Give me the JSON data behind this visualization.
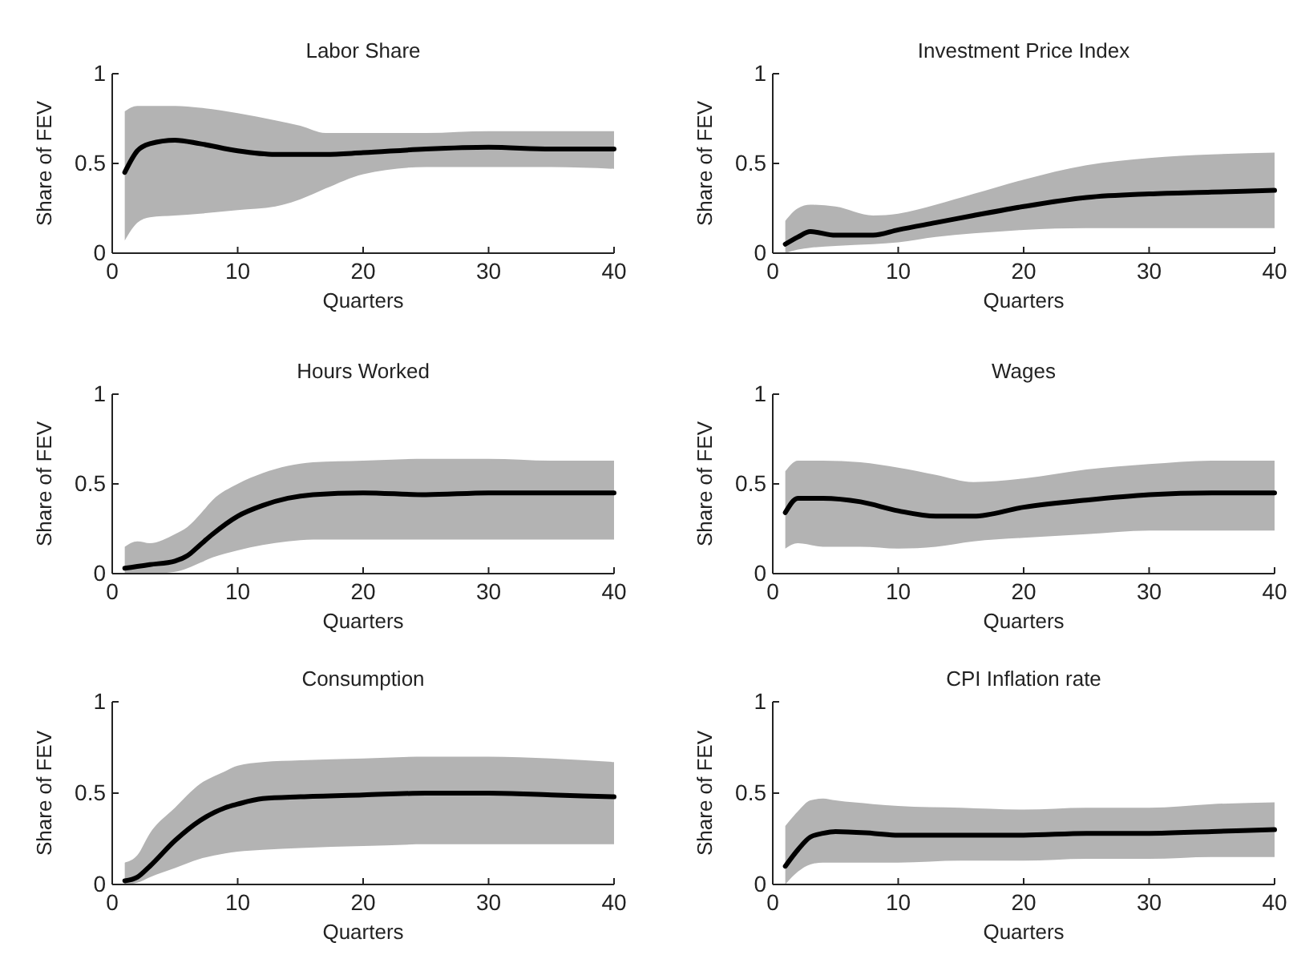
{
  "chart_data": [
    {
      "type": "line",
      "title": "Labor Share",
      "xlabel": "Quarters",
      "ylabel": "Share of FEV",
      "xlim": [
        0,
        40
      ],
      "xticks": [
        0,
        10,
        20,
        30,
        40
      ],
      "ylim": [
        0,
        1
      ],
      "yticks": [
        0,
        0.5,
        1
      ],
      "series": [
        {
          "color": "#000000",
          "x": [
            1,
            2,
            3,
            5,
            7,
            10,
            13,
            15,
            17,
            20,
            25,
            30,
            35,
            40
          ],
          "values": [
            0.45,
            0.57,
            0.61,
            0.63,
            0.61,
            0.57,
            0.55,
            0.55,
            0.55,
            0.56,
            0.58,
            0.59,
            0.58,
            0.58
          ],
          "upper": [
            0.79,
            0.82,
            0.82,
            0.82,
            0.81,
            0.78,
            0.74,
            0.71,
            0.67,
            0.67,
            0.67,
            0.68,
            0.68,
            0.68
          ],
          "lower": [
            0.07,
            0.17,
            0.2,
            0.21,
            0.22,
            0.24,
            0.26,
            0.3,
            0.36,
            0.44,
            0.48,
            0.48,
            0.48,
            0.47
          ]
        }
      ]
    },
    {
      "type": "line",
      "title": "Investment Price Index",
      "xlabel": "Quarters",
      "ylabel": "Share of FEV",
      "xlim": [
        0,
        40
      ],
      "xticks": [
        0,
        10,
        20,
        30,
        40
      ],
      "ylim": [
        0,
        1
      ],
      "yticks": [
        0,
        0.5,
        1
      ],
      "series": [
        {
          "color": "#000000",
          "x": [
            1,
            2,
            3,
            5,
            8,
            10,
            13,
            16,
            20,
            25,
            30,
            35,
            40
          ],
          "values": [
            0.05,
            0.09,
            0.12,
            0.1,
            0.1,
            0.13,
            0.17,
            0.21,
            0.26,
            0.31,
            0.33,
            0.34,
            0.35
          ],
          "upper": [
            0.18,
            0.25,
            0.27,
            0.26,
            0.21,
            0.22,
            0.27,
            0.33,
            0.41,
            0.49,
            0.53,
            0.55,
            0.56
          ],
          "lower": [
            0,
            0.02,
            0.03,
            0.04,
            0.05,
            0.06,
            0.09,
            0.11,
            0.13,
            0.14,
            0.14,
            0.14,
            0.14
          ]
        }
      ]
    },
    {
      "type": "line",
      "title": "Hours Worked",
      "xlabel": "Quarters",
      "ylabel": "Share of FEV",
      "xlim": [
        0,
        40
      ],
      "xticks": [
        0,
        10,
        20,
        30,
        40
      ],
      "ylim": [
        0,
        1
      ],
      "yticks": [
        0,
        0.5,
        1
      ],
      "series": [
        {
          "color": "#000000",
          "x": [
            1,
            2,
            3,
            5,
            6,
            7,
            8,
            10,
            12,
            14,
            16,
            20,
            25,
            30,
            35,
            40
          ],
          "values": [
            0.03,
            0.04,
            0.05,
            0.07,
            0.1,
            0.16,
            0.22,
            0.32,
            0.38,
            0.42,
            0.44,
            0.45,
            0.44,
            0.45,
            0.45,
            0.45
          ],
          "upper": [
            0.15,
            0.18,
            0.17,
            0.22,
            0.26,
            0.33,
            0.41,
            0.5,
            0.56,
            0.6,
            0.62,
            0.63,
            0.64,
            0.64,
            0.63,
            0.63
          ],
          "lower": [
            0,
            0,
            0,
            0.01,
            0.03,
            0.06,
            0.09,
            0.13,
            0.16,
            0.18,
            0.19,
            0.19,
            0.19,
            0.19,
            0.19,
            0.19
          ]
        }
      ]
    },
    {
      "type": "line",
      "title": "Wages",
      "xlabel": "Quarters",
      "ylabel": "Share of FEV",
      "xlim": [
        0,
        40
      ],
      "xticks": [
        0,
        10,
        20,
        30,
        40
      ],
      "ylim": [
        0,
        1
      ],
      "yticks": [
        0,
        0.5,
        1
      ],
      "series": [
        {
          "color": "#000000",
          "x": [
            1,
            2,
            4,
            7,
            10,
            13,
            16,
            20,
            25,
            30,
            35,
            40
          ],
          "values": [
            0.34,
            0.42,
            0.42,
            0.4,
            0.35,
            0.32,
            0.32,
            0.37,
            0.41,
            0.44,
            0.45,
            0.45
          ],
          "upper": [
            0.57,
            0.63,
            0.63,
            0.62,
            0.59,
            0.55,
            0.51,
            0.53,
            0.58,
            0.61,
            0.63,
            0.63
          ],
          "lower": [
            0.14,
            0.17,
            0.15,
            0.15,
            0.14,
            0.15,
            0.18,
            0.2,
            0.22,
            0.24,
            0.24,
            0.24
          ]
        }
      ]
    },
    {
      "type": "line",
      "title": "Consumption",
      "xlabel": "Quarters",
      "ylabel": "Share of FEV",
      "xlim": [
        0,
        40
      ],
      "xticks": [
        0,
        10,
        20,
        30,
        40
      ],
      "ylim": [
        0,
        1
      ],
      "yticks": [
        0,
        0.5,
        1
      ],
      "series": [
        {
          "color": "#000000",
          "x": [
            1,
            2,
            3,
            5,
            7,
            9,
            10,
            12,
            15,
            20,
            25,
            30,
            35,
            40
          ],
          "values": [
            0.02,
            0.04,
            0.1,
            0.24,
            0.35,
            0.42,
            0.44,
            0.47,
            0.48,
            0.49,
            0.5,
            0.5,
            0.49,
            0.48
          ],
          "upper": [
            0.12,
            0.16,
            0.28,
            0.42,
            0.55,
            0.62,
            0.65,
            0.67,
            0.68,
            0.69,
            0.7,
            0.7,
            0.69,
            0.67
          ],
          "lower": [
            0,
            0.01,
            0.04,
            0.09,
            0.14,
            0.17,
            0.18,
            0.19,
            0.2,
            0.21,
            0.22,
            0.22,
            0.22,
            0.22
          ]
        }
      ]
    },
    {
      "type": "line",
      "title": "CPI Inflation rate",
      "xlabel": "Quarters",
      "ylabel": "Share of FEV",
      "xlim": [
        0,
        40
      ],
      "xticks": [
        0,
        10,
        20,
        30,
        40
      ],
      "ylim": [
        0,
        1
      ],
      "yticks": [
        0,
        0.5,
        1
      ],
      "series": [
        {
          "color": "#000000",
          "x": [
            1,
            2,
            3,
            4,
            5,
            8,
            10,
            15,
            20,
            25,
            30,
            35,
            40
          ],
          "values": [
            0.1,
            0.19,
            0.26,
            0.28,
            0.29,
            0.28,
            0.27,
            0.27,
            0.27,
            0.28,
            0.28,
            0.29,
            0.3
          ],
          "upper": [
            0.32,
            0.4,
            0.46,
            0.47,
            0.46,
            0.44,
            0.43,
            0.42,
            0.41,
            0.42,
            0.42,
            0.44,
            0.45
          ],
          "lower": [
            0,
            0.07,
            0.11,
            0.12,
            0.12,
            0.12,
            0.12,
            0.13,
            0.13,
            0.14,
            0.14,
            0.15,
            0.15
          ]
        }
      ]
    }
  ]
}
